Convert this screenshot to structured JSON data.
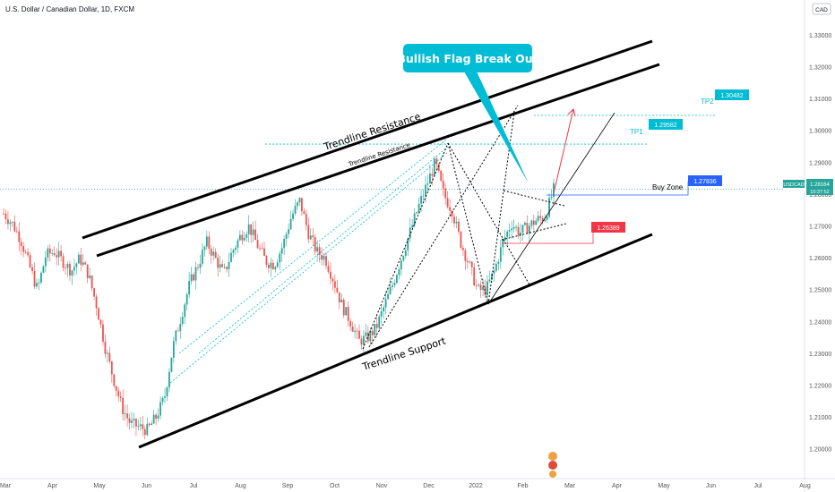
{
  "header": {
    "symbol_title": "U.S. Dollar / Canadian Dollar, 1D, FXCM",
    "currency": "CAD"
  },
  "price_badge": {
    "ticker": "USDCAD",
    "price": "1.28164",
    "countdown": "10:37:52"
  },
  "annotations": {
    "headline": "Bullish Flag Break Out",
    "upper_channel": "Trendline Resistance",
    "inner_channel": "Trendline Resistance",
    "lower_channel": "Trendline Support",
    "buy_zone": "Buy Zone",
    "tp1": "TP1",
    "tp2": "TP2"
  },
  "chart_data": {
    "type": "candlestick",
    "instrument": "USDCAD",
    "timeframe": "1D",
    "ylim": [
      1.195,
      1.336
    ],
    "y_ticks": [
      "1.33000",
      "1.32000",
      "1.31000",
      "1.30000",
      "1.29000",
      "1.28000",
      "1.27000",
      "1.26000",
      "1.25000",
      "1.24000",
      "1.23000",
      "1.22000",
      "1.21000",
      "1.20000"
    ],
    "x_ticks": [
      "Mar",
      "Apr",
      "May",
      "Jun",
      "Jul",
      "Aug",
      "Sep",
      "Oct",
      "Nov",
      "Dec",
      "2022",
      "Feb",
      "Mar",
      "Apr",
      "May",
      "Jun",
      "Jul",
      "Aug"
    ],
    "levels": {
      "tp2": "1.30482",
      "tp1": "1.29582",
      "buy_zone": "1.27836",
      "stop": "1.26389",
      "last": "1.28164"
    },
    "colors": {
      "up": "#26a69a",
      "down": "#ef5350",
      "tp": "#00bcd4",
      "buy": "#2962ff",
      "stop": "#f23645",
      "headline": "#00bcd4"
    },
    "price_path": [
      [
        0,
        1.274
      ],
      [
        2,
        1.271
      ],
      [
        4,
        1.266
      ],
      [
        6,
        1.258
      ],
      [
        8,
        1.25
      ],
      [
        10,
        1.261
      ],
      [
        12,
        1.262
      ],
      [
        14,
        1.259
      ],
      [
        16,
        1.256
      ],
      [
        18,
        1.26
      ],
      [
        20,
        1.255
      ],
      [
        22,
        1.245
      ],
      [
        24,
        1.232
      ],
      [
        26,
        1.222
      ],
      [
        28,
        1.213
      ],
      [
        30,
        1.208
      ],
      [
        32,
        1.207
      ],
      [
        34,
        1.206
      ],
      [
        36,
        1.21
      ],
      [
        38,
        1.216
      ],
      [
        40,
        1.232
      ],
      [
        42,
        1.242
      ],
      [
        44,
        1.252
      ],
      [
        46,
        1.258
      ],
      [
        48,
        1.265
      ],
      [
        50,
        1.26
      ],
      [
        52,
        1.255
      ],
      [
        54,
        1.262
      ],
      [
        56,
        1.267
      ],
      [
        58,
        1.27
      ],
      [
        60,
        1.264
      ],
      [
        62,
        1.259
      ],
      [
        64,
        1.258
      ],
      [
        66,
        1.264
      ],
      [
        68,
        1.273
      ],
      [
        70,
        1.278
      ],
      [
        72,
        1.268
      ],
      [
        74,
        1.262
      ],
      [
        76,
        1.26
      ],
      [
        78,
        1.253
      ],
      [
        80,
        1.245
      ],
      [
        82,
        1.24
      ],
      [
        84,
        1.234
      ],
      [
        86,
        1.235
      ],
      [
        88,
        1.238
      ],
      [
        90,
        1.245
      ],
      [
        92,
        1.252
      ],
      [
        94,
        1.26
      ],
      [
        96,
        1.268
      ],
      [
        98,
        1.276
      ],
      [
        100,
        1.283
      ],
      [
        102,
        1.29
      ],
      [
        104,
        1.28
      ],
      [
        106,
        1.275
      ],
      [
        108,
        1.265
      ],
      [
        110,
        1.258
      ],
      [
        112,
        1.25
      ],
      [
        114,
        1.25
      ],
      [
        116,
        1.256
      ],
      [
        118,
        1.265
      ],
      [
        120,
        1.271
      ],
      [
        122,
        1.268
      ],
      [
        124,
        1.27
      ],
      [
        126,
        1.272
      ],
      [
        128,
        1.273
      ],
      [
        130,
        1.2816
      ]
    ]
  }
}
